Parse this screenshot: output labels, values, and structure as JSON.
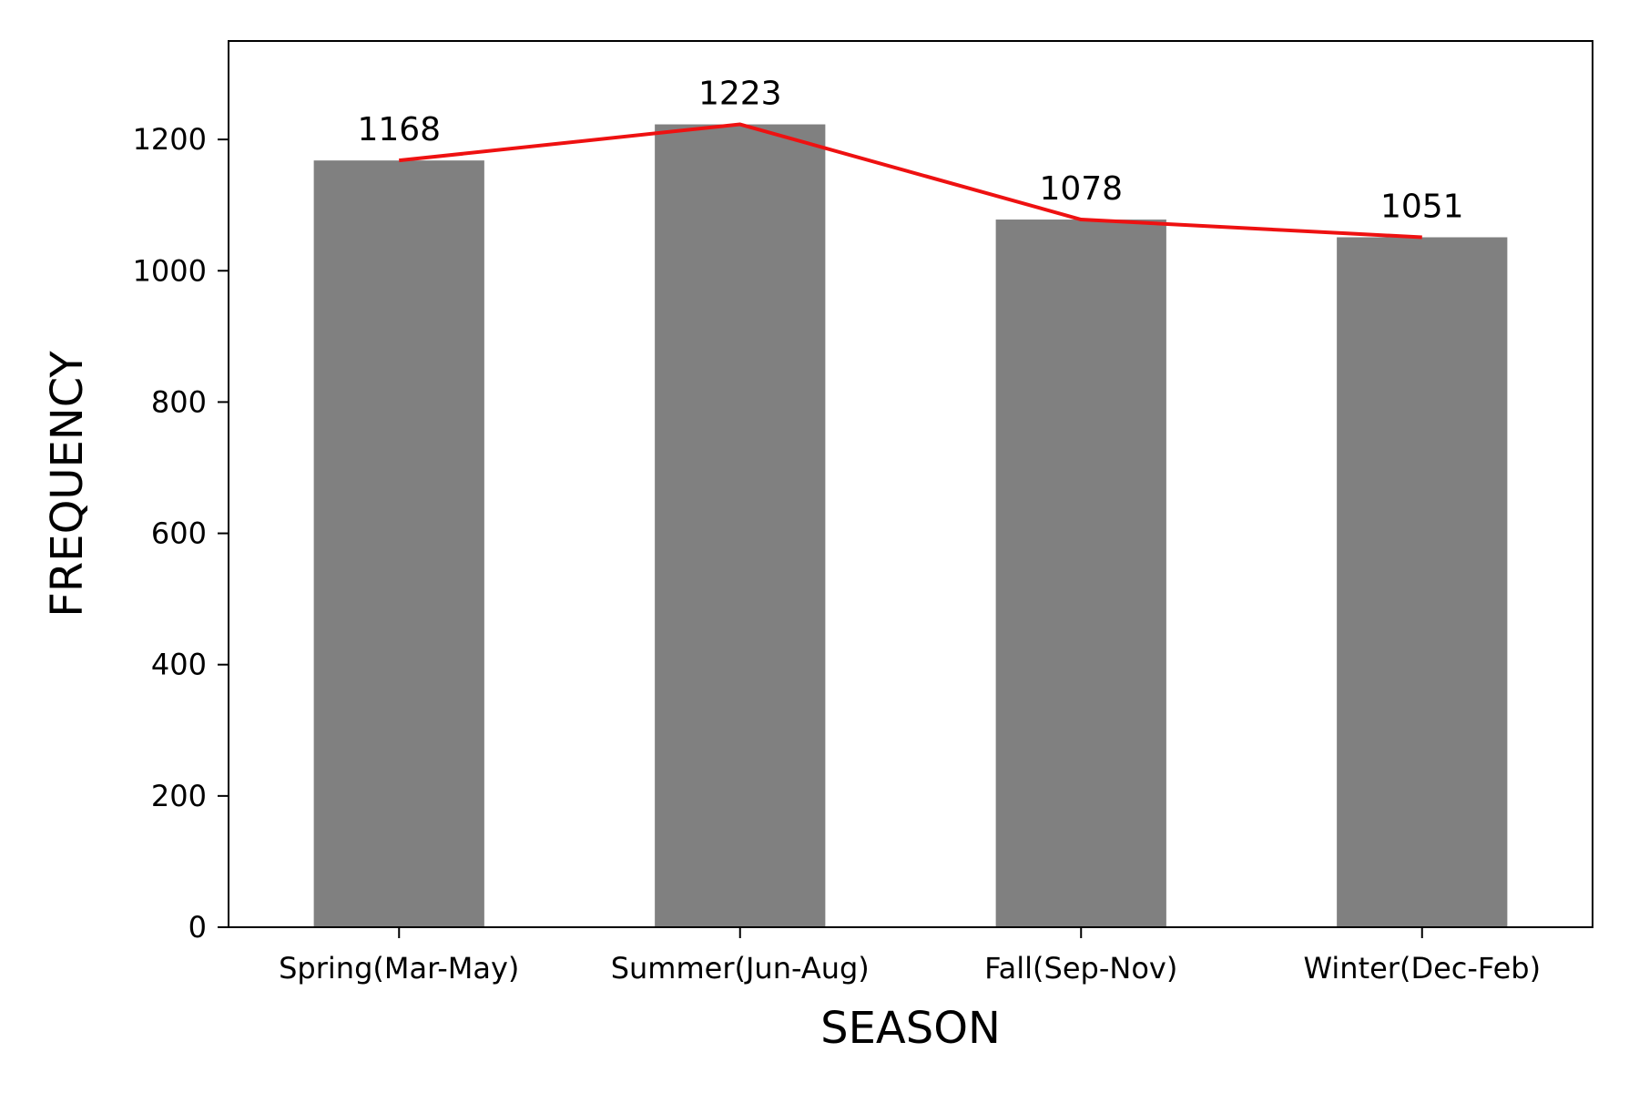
{
  "chart_data": {
    "type": "bar",
    "categories": [
      "Spring(Mar-May)",
      "Summer(Jun-Aug)",
      "Fall(Sep-Nov)",
      "Winter(Dec-Feb)"
    ],
    "values": [
      1168,
      1223,
      1078,
      1051
    ],
    "data_labels": [
      "1168",
      "1223",
      "1078",
      "1051"
    ],
    "overlay_line": {
      "type": "line",
      "values": [
        1168,
        1223,
        1078,
        1051
      ],
      "color": "#ee1111"
    },
    "title": "",
    "xlabel": "SEASON",
    "ylabel": "FREQUENCY",
    "ylim": [
      0,
      1350
    ],
    "yticks": [
      0,
      200,
      400,
      600,
      800,
      1000,
      1200
    ],
    "ytick_labels": [
      "0",
      "200",
      "400",
      "600",
      "800",
      "1000",
      "1200"
    ],
    "grid": false,
    "legend": "none",
    "colors": {
      "bar": "#808080",
      "line": "#ee1111",
      "axis": "#000000"
    }
  }
}
